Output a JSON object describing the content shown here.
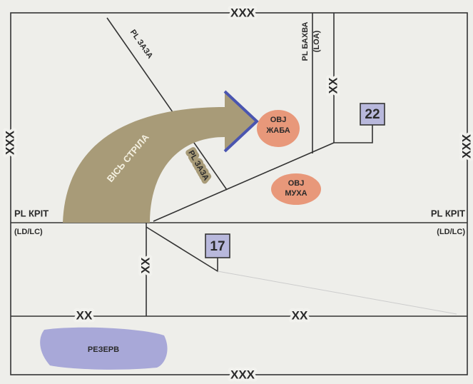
{
  "corps_boundaries": [
    "XXX",
    "XXX",
    "XXX",
    "XXX"
  ],
  "division_boundaries": [
    "XX",
    "XX",
    "XX",
    "XX"
  ],
  "phase_lines": [
    {
      "name": "PL КРІТ",
      "code": "(LD/LC)"
    },
    {
      "name": "PL КРІТ",
      "code": "(LD/LC)"
    },
    {
      "name": "PL ЗАЗА"
    },
    {
      "name": "PL ЗАЗА"
    },
    {
      "name": "PL БАХВА",
      "code": "(LOA)"
    }
  ],
  "axis": "ВІСЬ СТРІЛА",
  "objectives": [
    {
      "label": "OBJ",
      "name": "ЖАБА"
    },
    {
      "label": "OBJ",
      "name": "МУХА"
    }
  ],
  "units": [
    "22",
    "17"
  ],
  "reserve": "РЕЗЕРВ"
}
